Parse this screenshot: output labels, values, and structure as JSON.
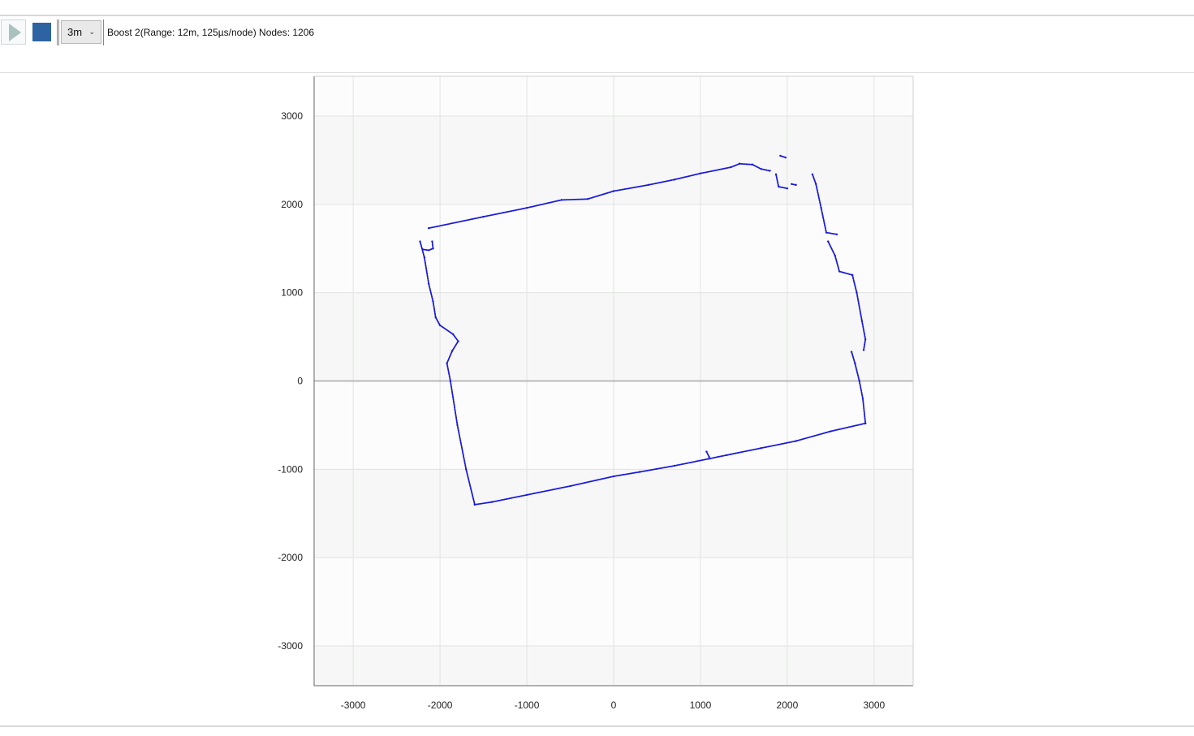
{
  "toolbar": {
    "play_icon": "play-icon",
    "stop_icon": "stop-icon",
    "range_value": "3m",
    "range_chevron": "chevron-down-icon",
    "status": "Boost 2(Range: 12m, 125µs/node) Nodes: 1206"
  },
  "colors": {
    "scan": "#1a1ad9",
    "accent": "#2e63a1",
    "band_light": "#f6f7f6",
    "band_white": "#fbfcfb"
  },
  "chart_data": {
    "type": "scatter",
    "title": "",
    "xlabel": "",
    "ylabel": "",
    "xlim": [
      -3450,
      3450
    ],
    "ylim": [
      -3450,
      3450
    ],
    "x_ticks": [
      -3000,
      -2000,
      -1000,
      0,
      1000,
      2000,
      3000
    ],
    "y_ticks": [
      3000,
      2000,
      1000,
      0,
      -1000,
      -2000,
      -3000
    ],
    "x_tick_labels": [
      "-3000",
      "-2000",
      "-1000",
      "0",
      "1000",
      "2000",
      "3000"
    ],
    "y_tick_labels": [
      "3000",
      "2000",
      "1000",
      "0",
      "-1000",
      "-2000",
      "-3000"
    ],
    "grid": true,
    "series": [
      {
        "name": "scan",
        "segments": [
          [
            [
              -2130,
              1730
            ],
            [
              -1500,
              1860
            ],
            [
              -1000,
              1960
            ],
            [
              -600,
              2050
            ],
            [
              -300,
              2060
            ],
            [
              0,
              2150
            ],
            [
              400,
              2220
            ],
            [
              700,
              2280
            ],
            [
              1000,
              2350
            ],
            [
              1350,
              2420
            ],
            [
              1450,
              2460
            ],
            [
              1600,
              2450
            ],
            [
              1700,
              2400
            ],
            [
              1800,
              2380
            ]
          ],
          [
            [
              1920,
              2550
            ],
            [
              1980,
              2530
            ]
          ],
          [
            [
              1870,
              2340
            ],
            [
              1900,
              2200
            ],
            [
              2000,
              2180
            ]
          ],
          [
            [
              2050,
              2230
            ],
            [
              2100,
              2220
            ]
          ],
          [
            [
              2290,
              2340
            ],
            [
              2330,
              2230
            ],
            [
              2390,
              1960
            ],
            [
              2450,
              1680
            ],
            [
              2570,
              1660
            ]
          ],
          [
            [
              2470,
              1580
            ],
            [
              2550,
              1420
            ],
            [
              2600,
              1240
            ],
            [
              2750,
              1200
            ]
          ],
          [
            [
              2750,
              1200
            ],
            [
              2800,
              1000
            ],
            [
              2860,
              680
            ],
            [
              2900,
              470
            ],
            [
              2880,
              350
            ]
          ],
          [
            [
              2740,
              330
            ],
            [
              2780,
              200
            ],
            [
              2830,
              0
            ],
            [
              2870,
              -200
            ],
            [
              2900,
              -480
            ]
          ],
          [
            [
              2900,
              -480
            ],
            [
              2500,
              -570
            ],
            [
              2100,
              -680
            ],
            [
              1700,
              -760
            ],
            [
              1300,
              -840
            ],
            [
              1100,
              -880
            ],
            [
              700,
              -960
            ],
            [
              300,
              -1030
            ],
            [
              0,
              -1080
            ],
            [
              -500,
              -1190
            ],
            [
              -1000,
              -1290
            ],
            [
              -1400,
              -1370
            ],
            [
              -1600,
              -1400
            ]
          ],
          [
            [
              -1600,
              -1400
            ],
            [
              -1700,
              -1000
            ],
            [
              -1800,
              -500
            ],
            [
              -1880,
              0
            ],
            [
              -1920,
              200
            ],
            [
              -1860,
              340
            ],
            [
              -1790,
              450
            ],
            [
              -1850,
              530
            ],
            [
              -2000,
              630
            ],
            [
              -2050,
              720
            ],
            [
              -2080,
              900
            ],
            [
              -2130,
              1100
            ],
            [
              -2180,
              1400
            ],
            [
              -2230,
              1580
            ]
          ],
          [
            [
              -2200,
              1490
            ],
            [
              -2130,
              1480
            ],
            [
              -2080,
              1500
            ],
            [
              -2090,
              1580
            ]
          ],
          [
            [
              1070,
              -800
            ],
            [
              1100,
              -860
            ]
          ]
        ]
      }
    ]
  }
}
